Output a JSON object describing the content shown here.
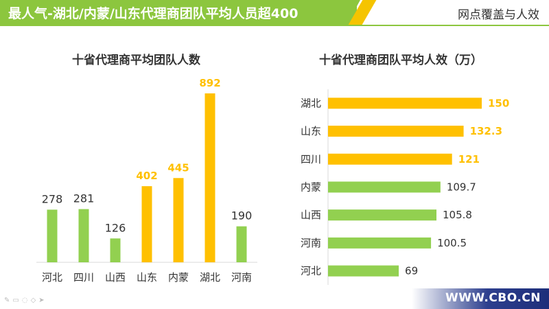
{
  "header": {
    "title": "最人气-湖北/内蒙/山东代理商团队平均人员超400",
    "right_label": "网点覆盖与人效"
  },
  "footer": {
    "site": "WWW.CBO.CN"
  },
  "toolbar": {
    "icons": [
      "pen-icon",
      "comment-icon",
      "highlight-icon",
      "eraser-icon",
      "pointer-icon"
    ]
  },
  "colors": {
    "green": "#92d050",
    "yellow": "#ffc000"
  },
  "chart_data": [
    {
      "type": "bar",
      "title": "十省代理商平均团队人数",
      "categories": [
        "河北",
        "四川",
        "山西",
        "山东",
        "内蒙",
        "湖北",
        "河南"
      ],
      "values": [
        278,
        281,
        126,
        402,
        445,
        892,
        190
      ],
      "labels": [
        "278",
        "281",
        "126",
        "402",
        "445",
        "892",
        "190"
      ],
      "highlight": [
        false,
        false,
        false,
        true,
        true,
        true,
        false
      ],
      "ylim": [
        0,
        900
      ]
    },
    {
      "type": "bar",
      "orientation": "horizontal",
      "title": "十省代理商团队平均人效（万）",
      "categories": [
        "湖北",
        "山东",
        "四川",
        "内蒙",
        "山西",
        "河南",
        "河北"
      ],
      "values": [
        150,
        132.3,
        121,
        109.7,
        105.8,
        100.5,
        69
      ],
      "labels": [
        "150",
        "132.3",
        "121",
        "109.7",
        "105.8",
        "100.5",
        "69"
      ],
      "highlight": [
        true,
        true,
        true,
        false,
        false,
        false,
        false
      ],
      "xlim": [
        0,
        150
      ]
    }
  ]
}
